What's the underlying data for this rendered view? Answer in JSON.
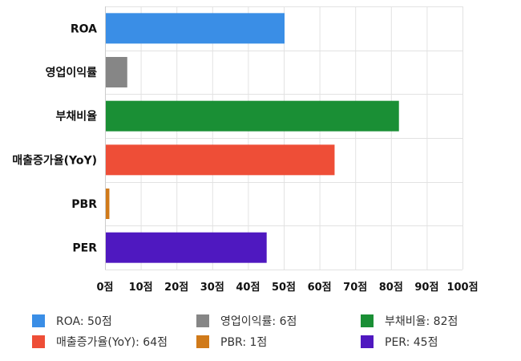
{
  "chart_data": {
    "type": "bar",
    "orientation": "horizontal",
    "categories": [
      "ROA",
      "영업이익률",
      "부채비율",
      "매출증가율(YoY)",
      "PBR",
      "PER"
    ],
    "values": [
      50,
      6,
      82,
      64,
      1,
      45
    ],
    "colors": [
      "#3a8ee6",
      "#868686",
      "#1a8f35",
      "#ee4e37",
      "#d07a1a",
      "#4f18c0"
    ],
    "xticks": [
      "0점",
      "10점",
      "20점",
      "30점",
      "40점",
      "50점",
      "60점",
      "70점",
      "80점",
      "90점",
      "100점"
    ],
    "xlim": [
      0,
      100
    ],
    "grid": true,
    "legend_position": "bottom",
    "legend": [
      {
        "label": "ROA: 50점",
        "color": "#3a8ee6"
      },
      {
        "label": "영업이익률: 6점",
        "color": "#868686"
      },
      {
        "label": "부채비율: 82점",
        "color": "#1a8f35"
      },
      {
        "label": "매출증가율(YoY): 64점",
        "color": "#ee4e37"
      },
      {
        "label": "PBR: 1점",
        "color": "#d07a1a"
      },
      {
        "label": "PER: 45점",
        "color": "#4f18c0"
      }
    ]
  }
}
